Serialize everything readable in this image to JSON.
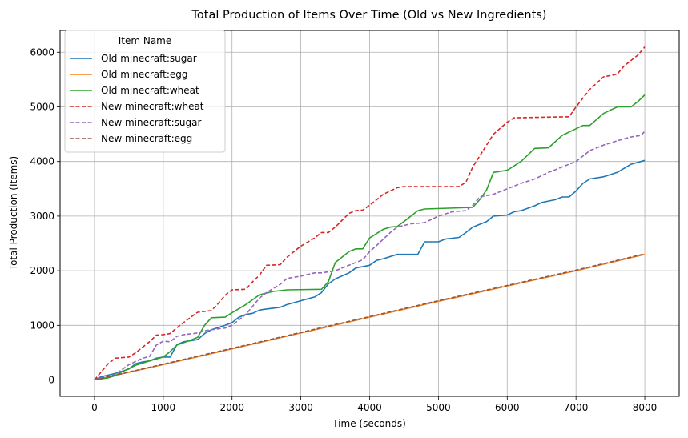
{
  "chart_data": {
    "type": "line",
    "title": "Total Production of Items Over Time (Old vs New Ingredients)",
    "xlabel": "Time (seconds)",
    "ylabel": "Total Production (Items)",
    "xlim": [
      -500,
      8500
    ],
    "ylim": [
      -300,
      6400
    ],
    "xticks": [
      0,
      1000,
      2000,
      3000,
      4000,
      5000,
      6000,
      7000,
      8000
    ],
    "yticks": [
      0,
      1000,
      2000,
      3000,
      4000,
      5000,
      6000
    ],
    "grid": true,
    "legend": {
      "title": "Item Name",
      "placement": "upper left"
    },
    "series": [
      {
        "name": "Old minecraft:sugar",
        "color": "#1f77b4",
        "style": "solid",
        "points": [
          [
            0,
            0
          ],
          [
            100,
            60
          ],
          [
            300,
            120
          ],
          [
            500,
            200
          ],
          [
            600,
            300
          ],
          [
            700,
            330
          ],
          [
            800,
            350
          ],
          [
            900,
            400
          ],
          [
            1000,
            420
          ],
          [
            1100,
            420
          ],
          [
            1200,
            650
          ],
          [
            1300,
            700
          ],
          [
            1500,
            740
          ],
          [
            1600,
            850
          ],
          [
            1700,
            920
          ],
          [
            1800,
            960
          ],
          [
            1900,
            1000
          ],
          [
            2000,
            1050
          ],
          [
            2100,
            1150
          ],
          [
            2200,
            1200
          ],
          [
            2300,
            1220
          ],
          [
            2400,
            1280
          ],
          [
            2500,
            1300
          ],
          [
            2700,
            1330
          ],
          [
            2800,
            1380
          ],
          [
            3000,
            1450
          ],
          [
            3200,
            1520
          ],
          [
            3300,
            1600
          ],
          [
            3400,
            1760
          ],
          [
            3500,
            1850
          ],
          [
            3700,
            1960
          ],
          [
            3800,
            2050
          ],
          [
            4000,
            2100
          ],
          [
            4100,
            2190
          ],
          [
            4200,
            2220
          ],
          [
            4400,
            2300
          ],
          [
            4700,
            2300
          ],
          [
            4800,
            2530
          ],
          [
            5000,
            2530
          ],
          [
            5100,
            2580
          ],
          [
            5300,
            2610
          ],
          [
            5400,
            2700
          ],
          [
            5500,
            2800
          ],
          [
            5700,
            2900
          ],
          [
            5800,
            3000
          ],
          [
            6000,
            3020
          ],
          [
            6100,
            3080
          ],
          [
            6200,
            3100
          ],
          [
            6400,
            3190
          ],
          [
            6500,
            3250
          ],
          [
            6700,
            3300
          ],
          [
            6800,
            3350
          ],
          [
            6900,
            3350
          ],
          [
            7000,
            3460
          ],
          [
            7100,
            3600
          ],
          [
            7200,
            3680
          ],
          [
            7400,
            3720
          ],
          [
            7600,
            3800
          ],
          [
            7800,
            3950
          ],
          [
            8000,
            4020
          ]
        ]
      },
      {
        "name": "Old minecraft:egg",
        "color": "#ff7f0e",
        "style": "solid",
        "points": [
          [
            0,
            0
          ],
          [
            1000,
            280
          ],
          [
            2000,
            570
          ],
          [
            3000,
            860
          ],
          [
            4000,
            1150
          ],
          [
            5000,
            1440
          ],
          [
            6000,
            1720
          ],
          [
            7000,
            2000
          ],
          [
            8000,
            2300
          ]
        ]
      },
      {
        "name": "Old minecraft:wheat",
        "color": "#2ca02c",
        "style": "solid",
        "points": [
          [
            0,
            0
          ],
          [
            200,
            40
          ],
          [
            300,
            80
          ],
          [
            400,
            150
          ],
          [
            600,
            270
          ],
          [
            800,
            350
          ],
          [
            1000,
            420
          ],
          [
            1100,
            520
          ],
          [
            1200,
            640
          ],
          [
            1400,
            730
          ],
          [
            1500,
            780
          ],
          [
            1600,
            1000
          ],
          [
            1700,
            1140
          ],
          [
            1900,
            1150
          ],
          [
            2000,
            1230
          ],
          [
            2200,
            1380
          ],
          [
            2400,
            1560
          ],
          [
            2600,
            1620
          ],
          [
            2800,
            1650
          ],
          [
            3300,
            1660
          ],
          [
            3400,
            1800
          ],
          [
            3500,
            2150
          ],
          [
            3700,
            2350
          ],
          [
            3800,
            2400
          ],
          [
            3900,
            2400
          ],
          [
            4000,
            2600
          ],
          [
            4200,
            2760
          ],
          [
            4300,
            2800
          ],
          [
            4400,
            2810
          ],
          [
            4500,
            2900
          ],
          [
            4700,
            3100
          ],
          [
            4800,
            3130
          ],
          [
            5500,
            3160
          ],
          [
            5600,
            3300
          ],
          [
            5700,
            3480
          ],
          [
            5800,
            3800
          ],
          [
            6000,
            3840
          ],
          [
            6200,
            4000
          ],
          [
            6400,
            4240
          ],
          [
            6600,
            4250
          ],
          [
            6800,
            4480
          ],
          [
            7000,
            4600
          ],
          [
            7100,
            4660
          ],
          [
            7200,
            4660
          ],
          [
            7400,
            4880
          ],
          [
            7600,
            5000
          ],
          [
            7800,
            5000
          ],
          [
            7900,
            5100
          ],
          [
            8000,
            5220
          ]
        ]
      },
      {
        "name": "New minecraft:wheat",
        "color": "#d62728",
        "style": "dashed",
        "points": [
          [
            0,
            0
          ],
          [
            100,
            150
          ],
          [
            200,
            300
          ],
          [
            300,
            400
          ],
          [
            500,
            420
          ],
          [
            600,
            500
          ],
          [
            800,
            700
          ],
          [
            900,
            820
          ],
          [
            1000,
            830
          ],
          [
            1100,
            850
          ],
          [
            1200,
            960
          ],
          [
            1400,
            1150
          ],
          [
            1500,
            1240
          ],
          [
            1700,
            1270
          ],
          [
            1800,
            1400
          ],
          [
            1900,
            1550
          ],
          [
            2000,
            1650
          ],
          [
            2200,
            1660
          ],
          [
            2300,
            1800
          ],
          [
            2400,
            1920
          ],
          [
            2500,
            2100
          ],
          [
            2700,
            2110
          ],
          [
            2800,
            2250
          ],
          [
            3000,
            2450
          ],
          [
            3200,
            2600
          ],
          [
            3300,
            2700
          ],
          [
            3400,
            2700
          ],
          [
            3500,
            2800
          ],
          [
            3700,
            3050
          ],
          [
            3800,
            3100
          ],
          [
            3900,
            3110
          ],
          [
            4000,
            3200
          ],
          [
            4200,
            3400
          ],
          [
            4400,
            3520
          ],
          [
            4500,
            3540
          ],
          [
            5300,
            3540
          ],
          [
            5400,
            3620
          ],
          [
            5500,
            3900
          ],
          [
            5700,
            4300
          ],
          [
            5800,
            4500
          ],
          [
            6000,
            4720
          ],
          [
            6100,
            4800
          ],
          [
            6900,
            4820
          ],
          [
            7000,
            5000
          ],
          [
            7200,
            5320
          ],
          [
            7400,
            5550
          ],
          [
            7600,
            5600
          ],
          [
            7700,
            5750
          ],
          [
            7900,
            5950
          ],
          [
            8000,
            6100
          ]
        ]
      },
      {
        "name": "New minecraft:sugar",
        "color": "#9467bd",
        "style": "dashed",
        "points": [
          [
            0,
            0
          ],
          [
            100,
            40
          ],
          [
            300,
            100
          ],
          [
            500,
            280
          ],
          [
            700,
            400
          ],
          [
            800,
            430
          ],
          [
            900,
            640
          ],
          [
            1000,
            710
          ],
          [
            1100,
            700
          ],
          [
            1200,
            800
          ],
          [
            1300,
            830
          ],
          [
            1500,
            860
          ],
          [
            1600,
            900
          ],
          [
            1700,
            920
          ],
          [
            1900,
            950
          ],
          [
            2000,
            1000
          ],
          [
            2200,
            1200
          ],
          [
            2400,
            1500
          ],
          [
            2500,
            1600
          ],
          [
            2700,
            1750
          ],
          [
            2800,
            1860
          ],
          [
            3000,
            1900
          ],
          [
            3200,
            1960
          ],
          [
            3300,
            1960
          ],
          [
            3500,
            2000
          ],
          [
            3700,
            2100
          ],
          [
            3900,
            2200
          ],
          [
            4000,
            2350
          ],
          [
            4100,
            2460
          ],
          [
            4300,
            2700
          ],
          [
            4400,
            2800
          ],
          [
            4600,
            2860
          ],
          [
            4800,
            2880
          ],
          [
            5000,
            3000
          ],
          [
            5200,
            3080
          ],
          [
            5400,
            3100
          ],
          [
            5500,
            3200
          ],
          [
            5600,
            3350
          ],
          [
            5800,
            3400
          ],
          [
            6000,
            3500
          ],
          [
            6200,
            3600
          ],
          [
            6400,
            3680
          ],
          [
            6600,
            3800
          ],
          [
            6800,
            3900
          ],
          [
            7000,
            4000
          ],
          [
            7200,
            4200
          ],
          [
            7400,
            4300
          ],
          [
            7600,
            4380
          ],
          [
            7800,
            4450
          ],
          [
            7950,
            4480
          ],
          [
            8000,
            4560
          ]
        ]
      },
      {
        "name": "New minecraft:egg",
        "color": "#8c564b",
        "style": "dashed",
        "points": [
          [
            0,
            0
          ],
          [
            1000,
            290
          ],
          [
            2000,
            580
          ],
          [
            3000,
            870
          ],
          [
            4000,
            1160
          ],
          [
            5000,
            1450
          ],
          [
            6000,
            1730
          ],
          [
            7000,
            2010
          ],
          [
            8000,
            2310
          ]
        ]
      }
    ]
  }
}
